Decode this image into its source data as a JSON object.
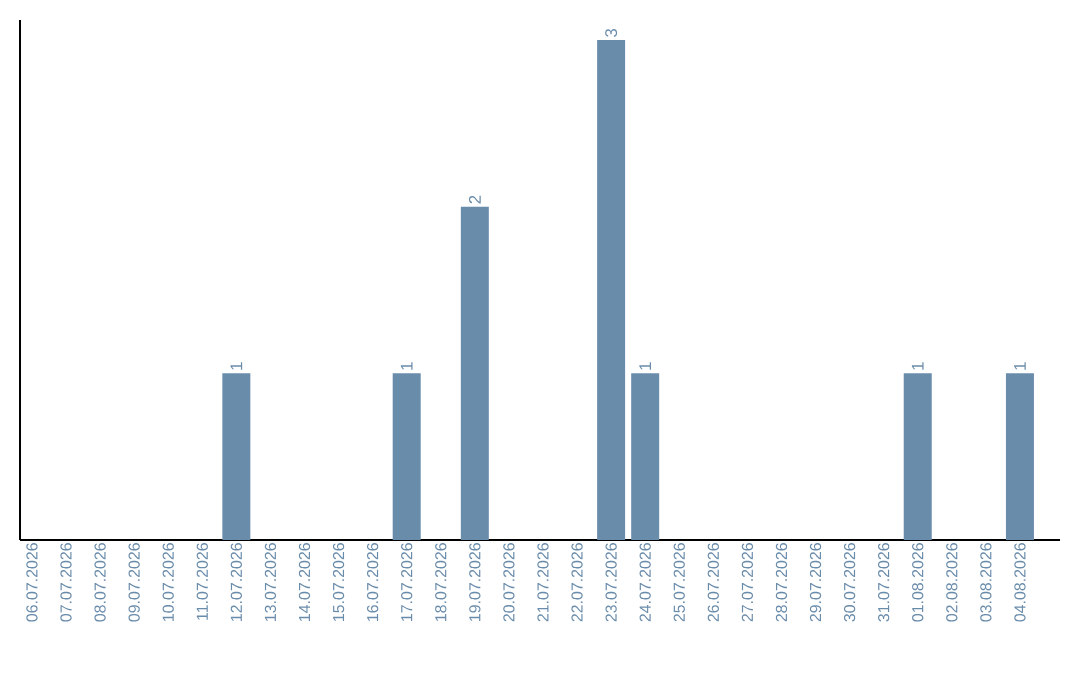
{
  "chart_data": {
    "type": "bar",
    "color": "#6a8cab",
    "categories": [
      "06.07.2026",
      "07.07.2026",
      "08.07.2026",
      "09.07.2026",
      "10.07.2026",
      "11.07.2026",
      "12.07.2026",
      "13.07.2026",
      "14.07.2026",
      "15.07.2026",
      "16.07.2026",
      "17.07.2026",
      "18.07.2026",
      "19.07.2026",
      "20.07.2026",
      "21.07.2026",
      "22.07.2026",
      "23.07.2026",
      "24.07.2026",
      "25.07.2026",
      "26.07.2026",
      "27.07.2026",
      "28.07.2026",
      "29.07.2026",
      "30.07.2026",
      "31.07.2026",
      "01.08.2026",
      "02.08.2026",
      "03.08.2026",
      "04.08.2026"
    ],
    "values": [
      0,
      0,
      0,
      0,
      0,
      0,
      1,
      0,
      0,
      0,
      0,
      1,
      0,
      2,
      0,
      0,
      0,
      3,
      1,
      0,
      0,
      0,
      0,
      0,
      0,
      0,
      1,
      0,
      0,
      1
    ],
    "value_labels": [
      null,
      null,
      null,
      null,
      null,
      null,
      "1",
      null,
      null,
      null,
      null,
      "1",
      null,
      "2",
      null,
      null,
      null,
      "3",
      "1",
      null,
      null,
      null,
      null,
      null,
      null,
      null,
      "1",
      null,
      null,
      "1"
    ],
    "grid": false
  }
}
